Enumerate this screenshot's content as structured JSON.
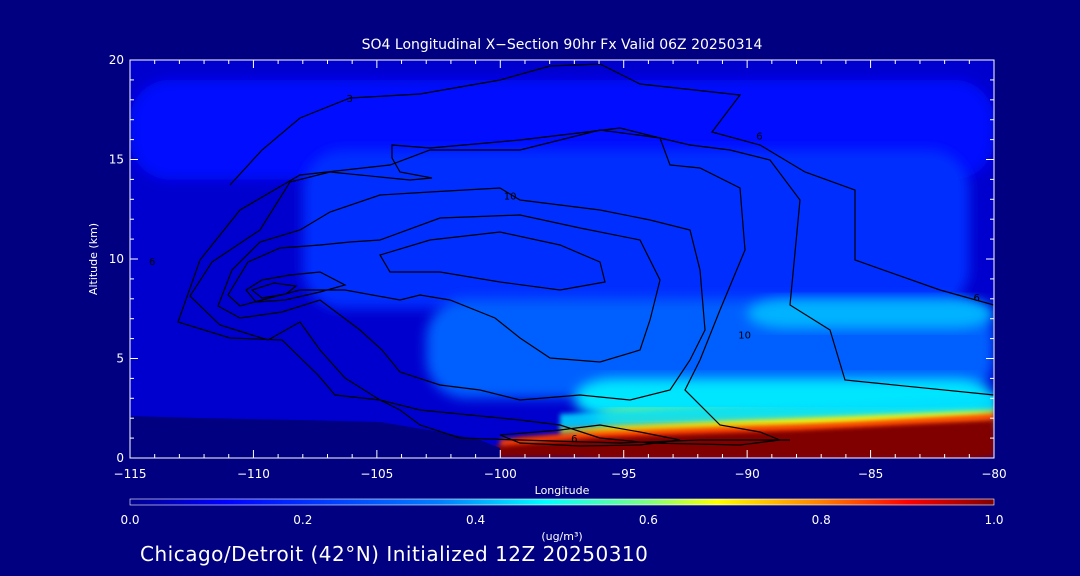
{
  "chart_data": {
    "type": "heatmap",
    "title": "SO4 Longitudinal X−Section 90hr  Fx Valid 06Z 20250314",
    "xlabel": "Longitude",
    "ylabel": "Altitude (km)",
    "xlim": [
      -115,
      -80
    ],
    "ylim": [
      0,
      20
    ],
    "xticks": [
      "−115",
      "−110",
      "−105",
      "−100",
      "−95",
      "−90",
      "−85",
      "−80"
    ],
    "xtick_values": [
      -115,
      -110,
      -105,
      -100,
      -95,
      -90,
      -85,
      -80
    ],
    "yticks": [
      "0",
      "5",
      "10",
      "15",
      "20"
    ],
    "ytick_values": [
      0,
      5,
      10,
      15,
      20
    ],
    "colorbar": {
      "label": "(ug/m³)",
      "range": [
        0.0,
        1.0
      ],
      "ticks": [
        "0.0",
        "0.2",
        "0.4",
        "0.6",
        "0.8",
        "1.0"
      ],
      "tick_values": [
        0.0,
        0.2,
        0.4,
        0.6,
        0.8,
        1.0
      ]
    },
    "contour_labels": [
      {
        "text": "3",
        "lon": -106.1,
        "alt": 17.9
      },
      {
        "text": "6",
        "lon": -89.5,
        "alt": 16.0
      },
      {
        "text": "10",
        "lon": -99.6,
        "alt": 13.0
      },
      {
        "text": "6",
        "lon": -114.1,
        "alt": 9.7
      },
      {
        "text": "6",
        "lon": -80.7,
        "alt": 7.9
      },
      {
        "text": "10",
        "lon": -90.1,
        "alt": 6.0
      },
      {
        "text": "6",
        "lon": -97.0,
        "alt": 0.8
      }
    ],
    "field_regions": [
      {
        "min_lon": -115,
        "max_lon": -80,
        "min_alt": 0,
        "max_alt": 20,
        "value": 0.07
      },
      {
        "min_lon": -115,
        "max_lon": -80,
        "min_alt": 14,
        "max_alt": 19,
        "value": 0.14
      },
      {
        "min_lon": -108,
        "max_lon": -81,
        "min_alt": 7.5,
        "max_alt": 15.5,
        "value": 0.17
      },
      {
        "min_lon": -103,
        "max_lon": -80,
        "min_alt": 3,
        "max_alt": 8,
        "value": 0.22
      },
      {
        "min_lon": -90,
        "max_lon": -80,
        "min_alt": 6.5,
        "max_alt": 8,
        "value": 0.3
      },
      {
        "min_lon": -97,
        "max_lon": -80,
        "min_alt": 2,
        "max_alt": 4,
        "value": 0.35
      },
      {
        "min_lon": -96,
        "max_lon": -80,
        "min_alt": 1.6,
        "max_alt": 2.4,
        "value": 0.55
      },
      {
        "min_lon": -96,
        "max_lon": -80,
        "min_alt": 1.3,
        "max_alt": 2.0,
        "value": 0.7
      },
      {
        "min_lon": -97,
        "max_lon": -80,
        "min_alt": 0,
        "max_alt": 1.5,
        "value": 0.95
      }
    ]
  },
  "footer": {
    "caption": "Chicago/Detroit (42°N) Initialized 12Z 20250310"
  },
  "colors": {
    "background": "#000080",
    "axes": "#ffffff",
    "contour": "#000000",
    "colormap": [
      "#00008f",
      "#0000ff",
      "#0080ff",
      "#00ffff",
      "#80ff80",
      "#ffff00",
      "#ff8000",
      "#ff0000",
      "#800000"
    ]
  }
}
